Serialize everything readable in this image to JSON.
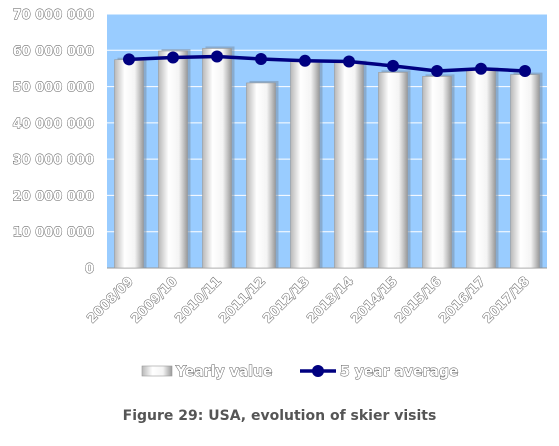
{
  "chart_data": {
    "type": "bar",
    "categories": [
      "2008/09",
      "2009/10",
      "2010/11",
      "2011/12",
      "2012/13",
      "2013/14",
      "2014/15",
      "2015/16",
      "2016/17",
      "2017/18"
    ],
    "series": [
      {
        "name": "Yearly value",
        "type": "bar",
        "values": [
          57400000,
          59800000,
          60500000,
          51000000,
          56900000,
          56600000,
          53900000,
          52800000,
          54700000,
          53300000
        ]
      },
      {
        "name": "5 year average",
        "type": "line",
        "values": [
          57500000,
          58000000,
          58300000,
          57600000,
          57100000,
          56900000,
          55700000,
          54300000,
          54900000,
          54300000
        ]
      }
    ],
    "yticks": [
      "0",
      "10 000 000",
      "20 000 000",
      "30 000 000",
      "40 000 000",
      "50 000 000",
      "60 000 000",
      "70 000 000"
    ],
    "ylim": [
      0,
      70000000
    ],
    "grid": true,
    "legend": "bottom",
    "colors": {
      "plot_background": "#99CCFF",
      "gridline": "#FFFFFF",
      "bar_fill": "#FFFFFF",
      "line": "#000080"
    }
  },
  "caption": "Figure 29: USA, evolution of skier visits"
}
